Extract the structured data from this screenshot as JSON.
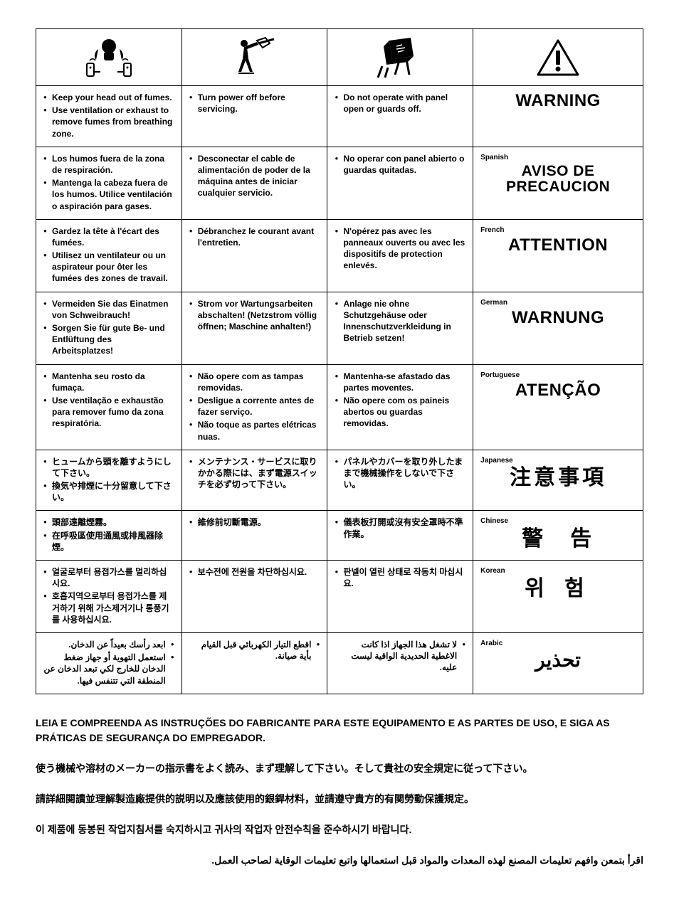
{
  "icons": {
    "fumes": "fumes-icon",
    "service": "service-icon",
    "panel": "panel-icon",
    "warning": "warning-triangle-icon"
  },
  "rows": [
    {
      "c1": [
        "Keep your head out of fumes.",
        "Use ventilation or exhaust to remove fumes from breathing zone."
      ],
      "c2": [
        "Turn power off before servicing."
      ],
      "c3": [
        "Do not operate with panel open or guards off."
      ],
      "lang": "",
      "warn": "WARNING",
      "warnClass": ""
    },
    {
      "c1": [
        "Los humos fuera de la zona de respiración.",
        "Mantenga la cabeza fuera de los humos. Utilice ventilación o aspiración para gases."
      ],
      "c2": [
        "Desconectar el cable de alimentación de poder de la máquina antes de iniciar cualquier servicio."
      ],
      "c3": [
        "No operar con panel abierto o guardas quitadas."
      ],
      "lang": "Spanish",
      "warn": "AVISO DE PRECAUCION",
      "warnClass": "sm"
    },
    {
      "c1": [
        "Gardez la tête à l'écart des fumées.",
        "Utilisez un ventilateur ou un aspirateur pour ôter les fumées des zones de travail."
      ],
      "c2": [
        "Débranchez le courant avant l'entretien."
      ],
      "c3": [
        "N'opérez pas avec les panneaux ouverts ou avec les dispositifs de protection enlevés."
      ],
      "lang": "French",
      "warn": "ATTENTION",
      "warnClass": ""
    },
    {
      "c1": [
        "Vermeiden Sie das Einatmen von Schweibrauch!",
        "Sorgen Sie für gute Be- und Entlüftung des Arbeitsplatzes!"
      ],
      "c2": [
        "Strom vor Wartungsarbeiten abschalten! (Netzstrom völlig öffnen; Maschine anhalten!)"
      ],
      "c3": [
        "Anlage nie ohne Schutzgehäuse oder Innenschutzverkleidung in Betrieb setzen!"
      ],
      "lang": "German",
      "warn": "WARNUNG",
      "warnClass": ""
    },
    {
      "c1": [
        "Mantenha seu rosto da fumaça.",
        "Use ventilação e exhaustão para remover fumo da zona respiratória."
      ],
      "c2": [
        "Não opere com as tampas removidas.",
        "Desligue a corrente antes de fazer serviço.",
        "Não toque as partes elétricas nuas."
      ],
      "c3": [
        "Mantenha-se afastado das partes moventes.",
        "Não opere com os paineis abertos ou guardas removidas."
      ],
      "lang": "Portuguese",
      "warn": "ATENÇÃO",
      "warnClass": ""
    },
    {
      "c1": [
        "ヒュームから頭を離すようにして下さい。",
        "換気や排煙に十分留意して下さい。"
      ],
      "c2": [
        "メンテナンス・サービスに取りかかる際には、まず電源スイッチを必ず切って下さい。"
      ],
      "c3": [
        "パネルやカバーを取り外したままで機械操作をしないで下さい。"
      ],
      "lang": "Japanese",
      "warn": "注意事項",
      "warnClass": "cjk"
    },
    {
      "c1": [
        "頭部遠離煙霧。",
        "在呼吸區使用通風或排風器除煙。"
      ],
      "c2": [
        "維修前切斷電源。"
      ],
      "c3": [
        "儀表板打開或沒有安全罩時不準作業。"
      ],
      "lang": "Chinese",
      "warn": "警　告",
      "warnClass": "cjk"
    },
    {
      "c1": [
        "얼굴로부터 용접가스를 멀리하십시요.",
        "호흡지역으로부터 용접가스를 제거하기 위해 가스제거기나 통풍기를 사용하십시요."
      ],
      "c2": [
        "보수전에 전원을 차단하십시요."
      ],
      "c3": [
        "판넬이 열린 상태로 작동치 마십시요."
      ],
      "lang": "Korean",
      "warn": "위 험",
      "warnClass": "ko"
    },
    {
      "c1_rtl": true,
      "c1": [
        "ابعد رأسك بعيداً عن الدخان.",
        "استعمل التهوية أو جهاز ضغط الدخان للخارج لكي تبعد الدخان عن المنطقة التي تتنفس فيها."
      ],
      "c2_rtl": true,
      "c2": [
        "اقطع التيار الكهربائي قبل القيام بأية صيانة."
      ],
      "c3_rtl": true,
      "c3": [
        "لا تشغل هذا الجهاز اذا كانت الاغطية الحديدية الواقية ليست عليه."
      ],
      "lang": "Arabic",
      "warn": "تحذير",
      "warnClass": "ar"
    }
  ],
  "footer": {
    "pt": "LEIA E COMPREENDA AS INSTRUÇÕES DO FABRICANTE PARA ESTE EQUIPAMENTO E AS PARTES DE USO, E SIGA AS PRÁTICAS DE SEGURANÇA DO EMPREGADOR.",
    "ja": "使う機械や溶材のメーカーの指示書をよく読み、まず理解して下さい。そして貴社の安全規定に従って下さい。",
    "zh": "請詳細閱讀並理解製造廠提供的説明以及應該使用的銀銲材料，並請遵守貴方的有関勞動保護規定。",
    "ko": "이 제품에 동봉된 작업지침서를 숙지하시고 귀사의 작업자 안전수칙을 준수하시기 바랍니다.",
    "ar": "اقرأ بتمعن وافهم تعليمات المصنع لهذه المعدات والمواد قبل استعمالها واتبع تعليمات الوقاية لصاحب العمل."
  }
}
